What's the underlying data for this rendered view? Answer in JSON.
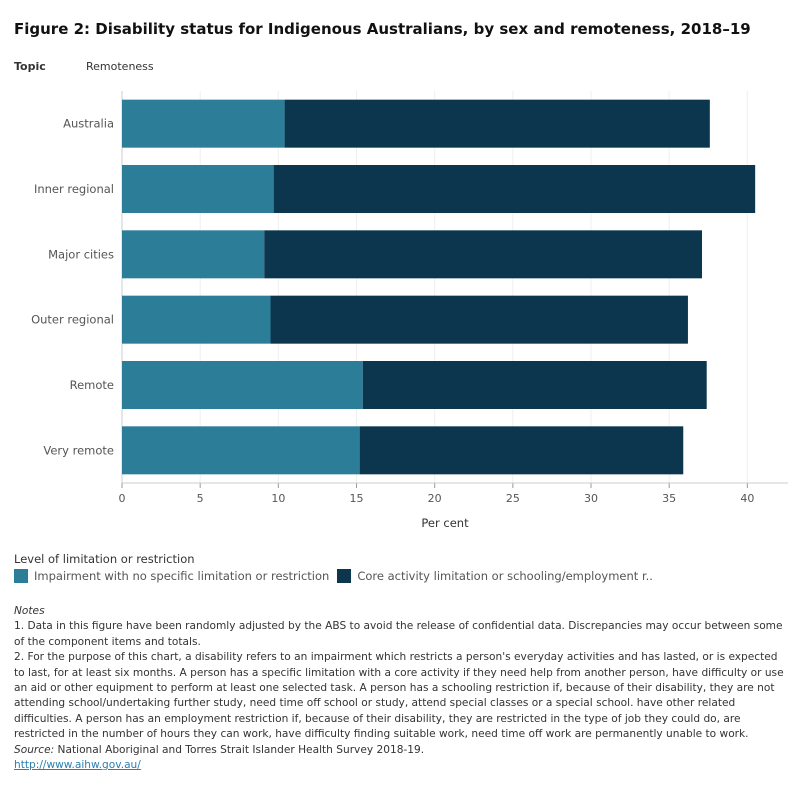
{
  "title": "Figure 2: Disability status for Indigenous Australians, by sex and remoteness, 2018–19",
  "header": {
    "topic": "Topic",
    "remoteness": "Remoteness"
  },
  "colors": {
    "impairment": "#2b7d98",
    "core": "#0b364d"
  },
  "chart_data": {
    "type": "bar",
    "orientation": "horizontal",
    "stacked": true,
    "categories": [
      "Australia",
      "Inner regional",
      "Major cities",
      "Outer regional",
      "Remote",
      "Very remote"
    ],
    "series": [
      {
        "name": "Impairment with no specific limitation or restriction",
        "values": [
          10.4,
          9.7,
          9.1,
          9.5,
          15.4,
          15.2
        ]
      },
      {
        "name": "Core activity limitation or schooling/employment r..",
        "values": [
          27.2,
          30.8,
          28.0,
          26.7,
          22.0,
          20.7
        ]
      }
    ],
    "xlabel": "Per cent",
    "xlim": [
      0,
      42.6
    ],
    "xticks": [
      "0",
      "5",
      "10",
      "15",
      "20",
      "25",
      "30",
      "35",
      "40"
    ],
    "grid": true,
    "legend_title": "Level of limitation or restriction",
    "legend_placement": "bottom"
  },
  "notes": {
    "heading": "Notes",
    "items": [
      "1. Data in this figure have been randomly adjusted by the ABS to avoid the release of confidential data. Discrepancies may occur between some of the component items and totals.",
      "2. For the purpose of this chart, a disability refers to an impairment which restricts a person's everyday activities and has lasted, or is expected to last, for at least six months. A person has a specific limitation with a core activity if they need help from another person, have difficulty or use an aid or other equipment to perform at least one selected task. A person has a schooling restriction if, because of their disability, they are not attending school/undertaking further study, need time off school or study, attend special classes or a special school. have other related difficulties. A person has an employment restriction if, because of their disability, they are restricted in the type of job they could do, are restricted in the number of hours they can work, have difficulty finding suitable work, need time off work are permanently unable to work."
    ],
    "source_label": "Source:",
    "source": " National Aboriginal and Torres Strait Islander Health Survey 2018-19.",
    "link": "http://www.aihw.gov.au/"
  }
}
